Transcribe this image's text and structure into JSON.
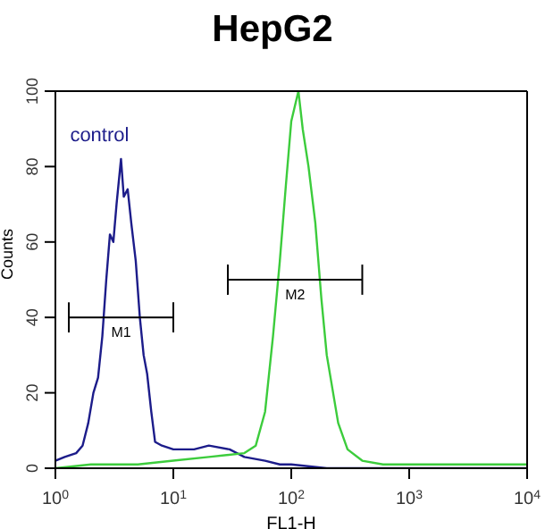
{
  "chart_data": {
    "type": "line",
    "title": "HepG2",
    "xlabel": "FL1-H",
    "ylabel": "Counts",
    "log": "x",
    "marker": "none",
    "xlim": [
      1,
      10000
    ],
    "xticks": [
      {
        "value": 1,
        "label": "10$^{0}$"
      },
      {
        "value": 10,
        "label": "10$^{1}$"
      },
      {
        "value": 100,
        "label": "10$^{2}$"
      },
      {
        "value": 1000,
        "label": "10$^{3}$"
      },
      {
        "value": 10000,
        "label": "10$^{4}$"
      }
    ],
    "ylim": [
      0,
      100
    ],
    "yticks": [
      0,
      20,
      40,
      60,
      80,
      100
    ],
    "series": [
      {
        "name": "control",
        "color": "#1c1c8a",
        "x": [
          1,
          1.2,
          1.5,
          1.7,
          1.9,
          2.1,
          2.3,
          2.5,
          2.7,
          2.9,
          3.1,
          3.3,
          3.6,
          3.8,
          4.1,
          4.4,
          4.8,
          5.2,
          5.6,
          6,
          6.5,
          7,
          8,
          10,
          15,
          20,
          30,
          40,
          60,
          80,
          100,
          200,
          10000
        ],
        "values": [
          2,
          3,
          4,
          6,
          12,
          20,
          24,
          35,
          50,
          62,
          60,
          70,
          82,
          72,
          74,
          65,
          55,
          40,
          30,
          25,
          15,
          7,
          6,
          5,
          5,
          6,
          5,
          3,
          2,
          1,
          1,
          0,
          0
        ]
      },
      {
        "color": "#3ccc3c",
        "x": [
          1,
          2,
          5,
          10,
          20,
          40,
          50,
          60,
          70,
          80,
          90,
          100,
          115,
          125,
          140,
          160,
          180,
          200,
          250,
          300,
          400,
          600,
          1000,
          10000
        ],
        "values": [
          0,
          1,
          1,
          2,
          3,
          4,
          6,
          15,
          35,
          55,
          75,
          92,
          100,
          90,
          80,
          65,
          45,
          30,
          12,
          5,
          2,
          1,
          1,
          1
        ]
      },
      {
        "name": "M1",
        "color": "#000000",
        "x": [
          1.3,
          10
        ],
        "values": [
          40,
          40
        ],
        "errors": [
          4,
          4
        ]
      },
      {
        "name": "M2",
        "color": "#000000",
        "x": [
          29,
          400
        ],
        "values": [
          50,
          50
        ],
        "errors": [
          4,
          4
        ]
      }
    ]
  }
}
